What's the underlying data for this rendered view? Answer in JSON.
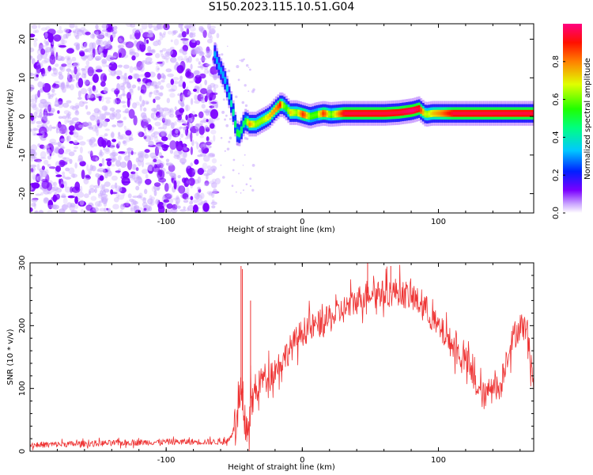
{
  "title": "S150.2023.115.10.51.G04",
  "chart_data": [
    {
      "type": "heatmap",
      "xlabel": "Height of straight line (km)",
      "ylabel": "Frequency (Hz)",
      "xlim": [
        -200,
        170
      ],
      "ylim": [
        -25,
        24
      ],
      "x_ticks": [
        -100,
        0,
        100
      ],
      "y_ticks": [
        -20,
        -10,
        0,
        10,
        20
      ],
      "colorbar": {
        "label": "Normalized spectral amplitude",
        "range": [
          0,
          1
        ],
        "ticks": [
          0.0,
          0.2,
          0.4,
          0.6,
          0.8
        ],
        "colormap": "hsv-rainbow"
      },
      "ridge": {
        "x": [
          -65,
          -62,
          -58,
          -55,
          -52,
          -50,
          -48,
          -46,
          -44,
          -42,
          -40,
          -35,
          -30,
          -25,
          -20,
          -17,
          -15,
          -12,
          -10,
          -5,
          0,
          5,
          10,
          15,
          20,
          30,
          40,
          60,
          70,
          80,
          85,
          90,
          95,
          100,
          110,
          120,
          140,
          170
        ],
        "y": [
          16,
          13,
          10,
          6,
          2,
          -2,
          -5,
          -4,
          -2,
          -1,
          -2,
          -2,
          -1,
          0,
          2,
          3,
          3,
          2,
          1,
          1,
          0.5,
          0,
          0.5,
          0.8,
          0.5,
          0.8,
          0.8,
          0.8,
          1,
          1.5,
          2,
          0.5,
          0.8,
          0.8,
          0.8,
          0.8,
          0.8,
          0.8
        ],
        "amplitude": [
          0.3,
          0.3,
          0.3,
          0.35,
          0.4,
          0.45,
          0.5,
          0.45,
          0.45,
          0.5,
          0.75,
          0.6,
          0.6,
          0.7,
          0.75,
          0.85,
          0.6,
          0.5,
          0.7,
          0.6,
          0.85,
          0.55,
          0.55,
          0.85,
          0.55,
          0.9,
          0.9,
          0.9,
          0.9,
          0.95,
          0.9,
          0.6,
          0.7,
          0.75,
          0.9,
          0.9,
          0.9,
          0.9
        ]
      },
      "noise_region": {
        "x_range": [
          -200,
          -62
        ],
        "amplitude": 0.2,
        "color": "#7b00ff"
      }
    },
    {
      "type": "line",
      "xlabel": "Height of straight line (km)",
      "ylabel": "SNR (10 * v/v)",
      "xlim": [
        -200,
        170
      ],
      "ylim": [
        0,
        300
      ],
      "x_ticks": [
        -100,
        0,
        100
      ],
      "y_ticks": [
        0,
        100,
        200,
        300
      ],
      "color": "#ee3333",
      "envelope": {
        "x": [
          -200,
          -100,
          -55,
          -48,
          -45,
          -43,
          -40,
          -38,
          -35,
          -30,
          -20,
          -10,
          0,
          10,
          20,
          30,
          40,
          50,
          60,
          70,
          80,
          90,
          100,
          105,
          110,
          115,
          120,
          125,
          130,
          135,
          140,
          145,
          150,
          155,
          160,
          165,
          170
        ],
        "y": [
          10,
          15,
          15,
          45,
          90,
          40,
          40,
          70,
          90,
          115,
          130,
          160,
          190,
          200,
          210,
          225,
          240,
          255,
          250,
          255,
          245,
          230,
          195,
          185,
          170,
          155,
          145,
          120,
          95,
          85,
          115,
          95,
          150,
          180,
          200,
          195,
          110
        ]
      },
      "spikes": [
        {
          "x": -45,
          "y": 295
        },
        {
          "x": -44,
          "y": 290
        },
        {
          "x": -38,
          "y": 240
        },
        {
          "x": 48,
          "y": 300
        },
        {
          "x": 65,
          "y": 295
        },
        {
          "x": 170,
          "y": 75
        }
      ]
    }
  ]
}
